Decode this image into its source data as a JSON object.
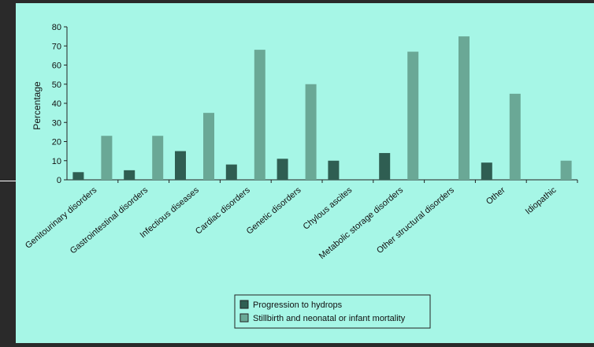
{
  "chart_data": {
    "type": "bar",
    "title": "",
    "xlabel": "",
    "ylabel": "Percentage",
    "ylim": [
      0,
      80
    ],
    "yticks": [
      0,
      10,
      20,
      30,
      40,
      50,
      60,
      70,
      80
    ],
    "categories": [
      "Genitourinary disorders",
      "Gastrointestinal disorders",
      "Infectious diseases",
      "Cardiac disorders",
      "Genetic disorders",
      "Chylous ascites",
      "Metabolic storage disorders",
      "Other structural disorders",
      "Other",
      "Idiopathic"
    ],
    "series": [
      {
        "name": "Progression to hydrops",
        "color": "#2f5e52",
        "values": [
          4,
          5,
          15,
          8,
          11,
          10,
          14,
          0,
          9,
          0
        ]
      },
      {
        "name": "Stillbirth and neonatal or infant mortality",
        "color": "#6aa896",
        "values": [
          23,
          23,
          35,
          68,
          50,
          0,
          67,
          75,
          45,
          10
        ]
      }
    ],
    "legend_position": "bottom-center",
    "grid": false
  }
}
